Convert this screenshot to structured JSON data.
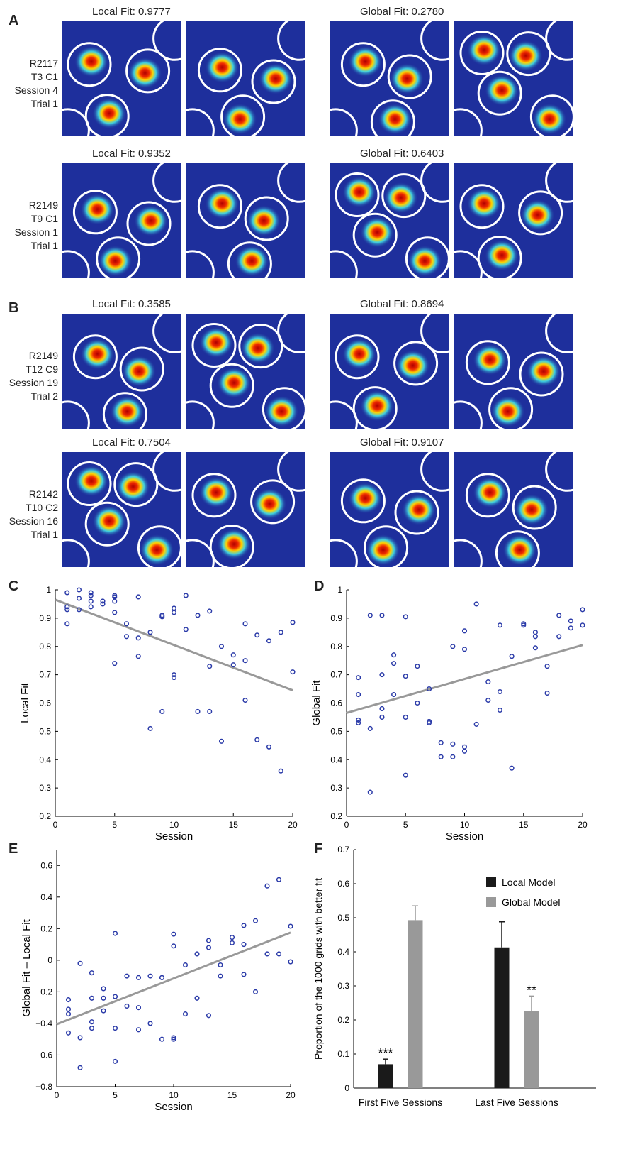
{
  "panels": {
    "A": {
      "letter": "A",
      "rows": [
        {
          "label": [
            "R2117",
            "T3 C1",
            "Session 4",
            "Trial 1"
          ],
          "local_title": "Local Fit: 0.9777",
          "global_title": "Global Fit: 0.2780"
        },
        {
          "label": [
            "R2149",
            "T9 C1",
            "Session 1",
            "Trial 1"
          ],
          "local_title": "Local Fit: 0.9352",
          "global_title": "Global Fit: 0.6403"
        }
      ]
    },
    "B": {
      "letter": "B",
      "rows": [
        {
          "label": [
            "R2149",
            "T12 C9",
            "Session 19",
            "Trial 2"
          ],
          "local_title": "Local Fit: 0.3585",
          "global_title": "Global Fit: 0.8694"
        },
        {
          "label": [
            "R2142",
            "T10 C2",
            "Session 16",
            "Trial 1"
          ],
          "local_title": "Local Fit: 0.7504",
          "global_title": "Global Fit: 0.9107"
        }
      ]
    },
    "C": {
      "letter": "C"
    },
    "D": {
      "letter": "D"
    },
    "E": {
      "letter": "E"
    },
    "F": {
      "letter": "F"
    }
  },
  "colors": {
    "point": "#2a3aa8",
    "fit_line": "#999999",
    "bar_local": "#1a1a1a",
    "bar_global": "#999999",
    "map_bg": "#1e2f9c"
  },
  "chart_data": [
    {
      "id": "C",
      "type": "scatter",
      "xlabel": "Session",
      "ylabel": "Local Fit",
      "xlim": [
        0,
        20
      ],
      "ylim": [
        0.2,
        1
      ],
      "xticks": [
        0,
        5,
        10,
        15,
        20
      ],
      "yticks": [
        0.2,
        0.3,
        0.4,
        0.5,
        0.6,
        0.7,
        0.8,
        0.9,
        1
      ],
      "ytick_labels": [
        "0.2",
        "0.3",
        "0.4",
        "0.5",
        "0.6",
        "0.7",
        "0.8",
        "0.9",
        "1"
      ],
      "fit_line": [
        [
          0,
          0.965
        ],
        [
          20,
          0.645
        ]
      ],
      "points": [
        [
          1,
          0.99
        ],
        [
          1,
          0.94
        ],
        [
          1,
          0.93
        ],
        [
          1,
          0.88
        ],
        [
          2,
          1.0
        ],
        [
          2,
          0.97
        ],
        [
          2,
          0.93
        ],
        [
          3,
          0.99
        ],
        [
          3,
          0.98
        ],
        [
          3,
          0.96
        ],
        [
          3,
          0.94
        ],
        [
          4,
          0.96
        ],
        [
          4,
          0.95
        ],
        [
          5,
          0.98
        ],
        [
          5,
          0.975
        ],
        [
          5,
          0.96
        ],
        [
          5,
          0.92
        ],
        [
          5,
          0.74
        ],
        [
          6,
          0.88
        ],
        [
          6,
          0.835
        ],
        [
          7,
          0.975
        ],
        [
          7,
          0.83
        ],
        [
          7,
          0.765
        ],
        [
          8,
          0.85
        ],
        [
          8,
          0.51
        ],
        [
          9,
          0.91
        ],
        [
          9,
          0.905
        ],
        [
          9,
          0.57
        ],
        [
          10,
          0.935
        ],
        [
          10,
          0.92
        ],
        [
          10,
          0.7
        ],
        [
          10,
          0.69
        ],
        [
          11,
          0.98
        ],
        [
          11,
          0.86
        ],
        [
          12,
          0.91
        ],
        [
          12,
          0.57
        ],
        [
          13,
          0.925
        ],
        [
          13,
          0.73
        ],
        [
          13,
          0.57
        ],
        [
          14,
          0.8
        ],
        [
          14,
          0.465
        ],
        [
          15,
          0.77
        ],
        [
          15,
          0.735
        ],
        [
          16,
          0.88
        ],
        [
          16,
          0.75
        ],
        [
          16,
          0.61
        ],
        [
          17,
          0.84
        ],
        [
          17,
          0.47
        ],
        [
          18,
          0.82
        ],
        [
          18,
          0.445
        ],
        [
          19,
          0.85
        ],
        [
          19,
          0.36
        ],
        [
          20,
          0.885
        ],
        [
          20,
          0.71
        ]
      ]
    },
    {
      "id": "D",
      "type": "scatter",
      "xlabel": "Session",
      "ylabel": "Global Fit",
      "xlim": [
        0,
        20
      ],
      "ylim": [
        0.2,
        1
      ],
      "xticks": [
        0,
        5,
        10,
        15,
        20
      ],
      "yticks": [
        0.2,
        0.3,
        0.4,
        0.5,
        0.6,
        0.7,
        0.8,
        0.9,
        1
      ],
      "ytick_labels": [
        "0.2",
        "0.3",
        "0.4",
        "0.5",
        "0.6",
        "0.7",
        "0.8",
        "0.9",
        "1"
      ],
      "fit_line": [
        [
          0,
          0.565
        ],
        [
          20,
          0.805
        ]
      ],
      "points": [
        [
          1,
          0.69
        ],
        [
          1,
          0.63
        ],
        [
          1,
          0.54
        ],
        [
          1,
          0.53
        ],
        [
          2,
          0.91
        ],
        [
          2,
          0.51
        ],
        [
          2,
          0.285
        ],
        [
          3,
          0.91
        ],
        [
          3,
          0.7
        ],
        [
          3,
          0.58
        ],
        [
          3,
          0.55
        ],
        [
          4,
          0.77
        ],
        [
          4,
          0.74
        ],
        [
          4,
          0.63
        ],
        [
          5,
          0.905
        ],
        [
          5,
          0.695
        ],
        [
          5,
          0.55
        ],
        [
          5,
          0.345
        ],
        [
          6,
          0.73
        ],
        [
          6,
          0.6
        ],
        [
          7,
          0.65
        ],
        [
          7,
          0.535
        ],
        [
          7,
          0.53
        ],
        [
          8,
          0.46
        ],
        [
          8,
          0.41
        ],
        [
          9,
          0.8
        ],
        [
          9,
          0.455
        ],
        [
          9,
          0.41
        ],
        [
          10,
          0.855
        ],
        [
          10,
          0.79
        ],
        [
          10,
          0.445
        ],
        [
          10,
          0.43
        ],
        [
          11,
          0.95
        ],
        [
          11,
          0.525
        ],
        [
          12,
          0.675
        ],
        [
          12,
          0.61
        ],
        [
          13,
          0.875
        ],
        [
          13,
          0.64
        ],
        [
          13,
          0.575
        ],
        [
          14,
          0.765
        ],
        [
          14,
          0.37
        ],
        [
          15,
          0.88
        ],
        [
          15,
          0.875
        ],
        [
          16,
          0.85
        ],
        [
          16,
          0.835
        ],
        [
          16,
          0.795
        ],
        [
          17,
          0.73
        ],
        [
          17,
          0.635
        ],
        [
          18,
          0.91
        ],
        [
          18,
          0.835
        ],
        [
          19,
          0.89
        ],
        [
          19,
          0.865
        ],
        [
          20,
          0.93
        ],
        [
          20,
          0.875
        ]
      ]
    },
    {
      "id": "E",
      "type": "scatter",
      "xlabel": "Session",
      "ylabel": "Global Fit – Local Fit",
      "xlim": [
        0,
        20
      ],
      "ylim": [
        -0.8,
        0.7
      ],
      "xticks": [
        0,
        5,
        10,
        15,
        20
      ],
      "yticks": [
        -0.8,
        -0.6,
        -0.4,
        -0.2,
        0,
        0.2,
        0.4,
        0.6
      ],
      "ytick_labels": [
        "−0.8",
        "−0.6",
        "−0.4",
        "−0.2",
        "0",
        "0.2",
        "0.4",
        "0.6"
      ],
      "fit_line": [
        [
          0,
          -0.405
        ],
        [
          20,
          0.175
        ]
      ],
      "points": [
        [
          1,
          -0.25
        ],
        [
          1,
          -0.31
        ],
        [
          1,
          -0.34
        ],
        [
          1,
          -0.46
        ],
        [
          2,
          -0.02
        ],
        [
          2,
          -0.49
        ],
        [
          2,
          -0.68
        ],
        [
          3,
          -0.08
        ],
        [
          3,
          -0.24
        ],
        [
          3,
          -0.39
        ],
        [
          3,
          -0.43
        ],
        [
          4,
          -0.18
        ],
        [
          4,
          -0.24
        ],
        [
          4,
          -0.32
        ],
        [
          5,
          0.17
        ],
        [
          5,
          -0.23
        ],
        [
          5,
          -0.43
        ],
        [
          5,
          -0.64
        ],
        [
          6,
          -0.1
        ],
        [
          6,
          -0.29
        ],
        [
          7,
          -0.11
        ],
        [
          7,
          -0.3
        ],
        [
          7,
          -0.44
        ],
        [
          8,
          -0.1
        ],
        [
          8,
          -0.4
        ],
        [
          9,
          -0.11
        ],
        [
          9,
          -0.11
        ],
        [
          9,
          -0.5
        ],
        [
          10,
          0.165
        ],
        [
          10,
          0.09
        ],
        [
          10,
          -0.49
        ],
        [
          10,
          -0.5
        ],
        [
          11,
          -0.03
        ],
        [
          11,
          -0.34
        ],
        [
          12,
          0.04
        ],
        [
          12,
          -0.24
        ],
        [
          13,
          0.08
        ],
        [
          13,
          0.125
        ],
        [
          13,
          -0.35
        ],
        [
          14,
          -0.03
        ],
        [
          14,
          -0.1
        ],
        [
          15,
          0.145
        ],
        [
          15,
          0.11
        ],
        [
          16,
          0.22
        ],
        [
          16,
          0.1
        ],
        [
          16,
          -0.09
        ],
        [
          17,
          0.25
        ],
        [
          17,
          -0.2
        ],
        [
          18,
          0.47
        ],
        [
          18,
          0.04
        ],
        [
          19,
          0.51
        ],
        [
          19,
          0.04
        ],
        [
          20,
          0.215
        ],
        [
          20,
          -0.01
        ]
      ]
    },
    {
      "id": "F",
      "type": "bar",
      "ylabel": "Proportion of the 1000 grids with better fit",
      "ylim": [
        0,
        0.7
      ],
      "yticks": [
        0,
        0.1,
        0.2,
        0.3,
        0.4,
        0.5,
        0.6,
        0.7
      ],
      "ytick_labels": [
        "0",
        "0.1",
        "0.2",
        "0.3",
        "0.4",
        "0.5",
        "0.6",
        "0.7"
      ],
      "categories": [
        "First Five Sessions",
        "Last Five Sessions"
      ],
      "legend_position": "top-right",
      "series": [
        {
          "name": "Local Model",
          "values": [
            0.07,
            0.413
          ],
          "errors": [
            0.015,
            0.075
          ]
        },
        {
          "name": "Global Model",
          "values": [
            0.493,
            0.225
          ],
          "errors": [
            0.042,
            0.045
          ]
        }
      ],
      "annotations": [
        {
          "text": "***",
          "category": 0,
          "series": 0
        },
        {
          "text": "**",
          "category": 1,
          "series": 1
        }
      ]
    }
  ]
}
